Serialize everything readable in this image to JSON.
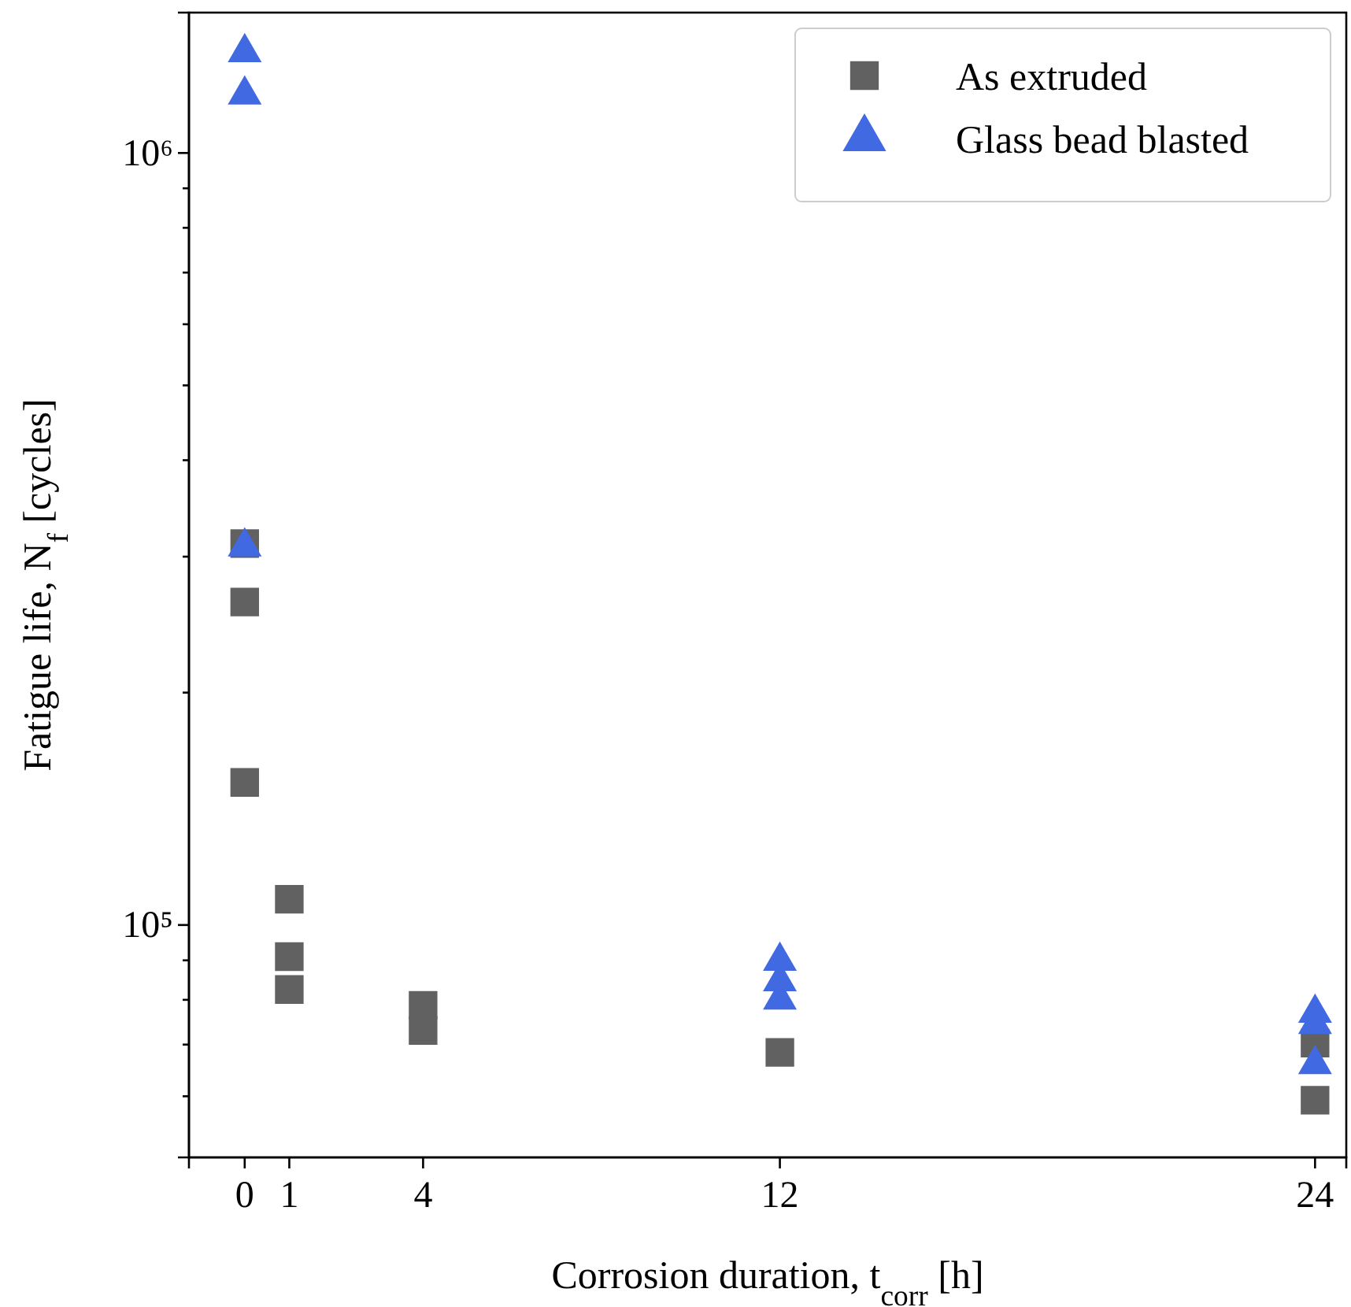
{
  "chart_data": {
    "type": "scatter",
    "xlabel": "Corrosion duration, t$_{corr}$ [h]",
    "ylabel": "Fatigue life, N$_{f}$ [cycles]",
    "log": "y",
    "xlim": [
      -1.25,
      24.7
    ],
    "xticks": [
      0,
      1,
      4,
      12,
      24
    ],
    "ylim": [
      50000,
      1520000
    ],
    "yticks": [
      {
        "value": 60000,
        "label": null
      },
      {
        "value": 70000,
        "label": null
      },
      {
        "value": 80000,
        "label": null
      },
      {
        "value": 90000,
        "label": null
      },
      {
        "value": 100000,
        "label": "10⁵"
      },
      {
        "value": 200000,
        "label": null
      },
      {
        "value": 300000,
        "label": null
      },
      {
        "value": 400000,
        "label": null
      },
      {
        "value": 500000,
        "label": null
      },
      {
        "value": 600000,
        "label": null
      },
      {
        "value": 700000,
        "label": null
      },
      {
        "value": 800000,
        "label": null
      },
      {
        "value": 900000,
        "label": null
      },
      {
        "value": 1000000,
        "label": "10⁶"
      }
    ],
    "legend": "top right",
    "grid": false,
    "series": [
      {
        "name": "As extruded",
        "color": "#616161",
        "marker": "square",
        "x": [
          0,
          0,
          0,
          1,
          1,
          1,
          4,
          4,
          12,
          24,
          24
        ],
        "values": [
          312000,
          262000,
          153000,
          108000,
          91000,
          82500,
          78700,
          73000,
          68400,
          70300,
          59300
        ]
      },
      {
        "name": "Glass bead blasted",
        "color": "#4169e1",
        "marker": "triangle",
        "x": [
          0,
          0,
          0,
          12,
          12,
          12,
          24,
          24,
          24
        ],
        "values": [
          1350000,
          1190000,
          309000,
          89800,
          84500,
          80000,
          76900,
          74400,
          66000
        ]
      }
    ]
  }
}
